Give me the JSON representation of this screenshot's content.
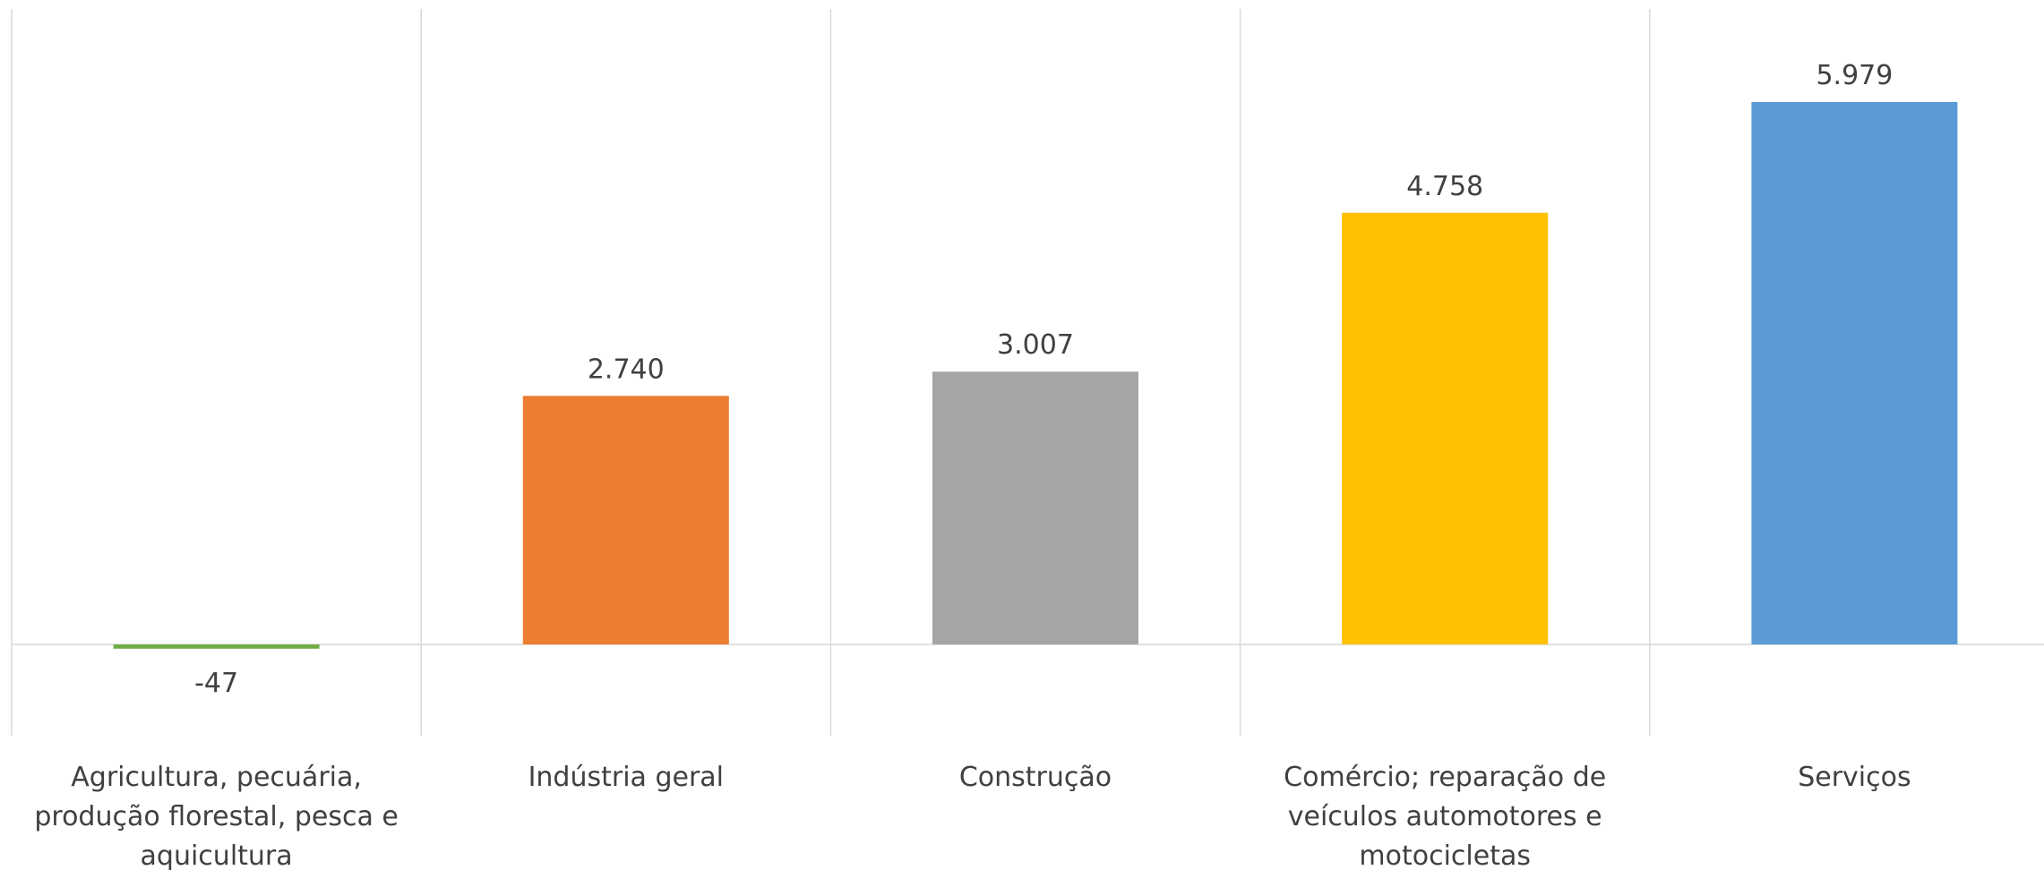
{
  "chart_data": {
    "type": "bar",
    "title": "",
    "xlabel": "",
    "ylabel": "",
    "categories": [
      "Agricultura, pecuária, produção florestal,  pesca e aquicultura",
      "Indústria geral",
      "Construção",
      "Comércio; reparação de veículos automotores e motocicletas",
      "Serviços"
    ],
    "category_lines": [
      [
        "Agricultura, pecuária,",
        "produção florestal,  pesca e",
        "aquicultura"
      ],
      [
        "Indústria geral"
      ],
      [
        "Construção"
      ],
      [
        "Comércio; reparação de",
        "veículos automotores e",
        "motocicletas"
      ],
      [
        "Serviços"
      ]
    ],
    "values": [
      -47,
      2740,
      3007,
      4758,
      5979
    ],
    "value_labels": [
      "-47",
      "2.740",
      "3.007",
      "4.758",
      "5.979"
    ],
    "colors": [
      "#70AD47",
      "#ED7D31",
      "#A5A5A5",
      "#FFC000",
      "#5B9BD5"
    ],
    "ylim": [
      -1000,
      7000
    ],
    "grid": false,
    "category_separators": true,
    "legend": "none"
  }
}
